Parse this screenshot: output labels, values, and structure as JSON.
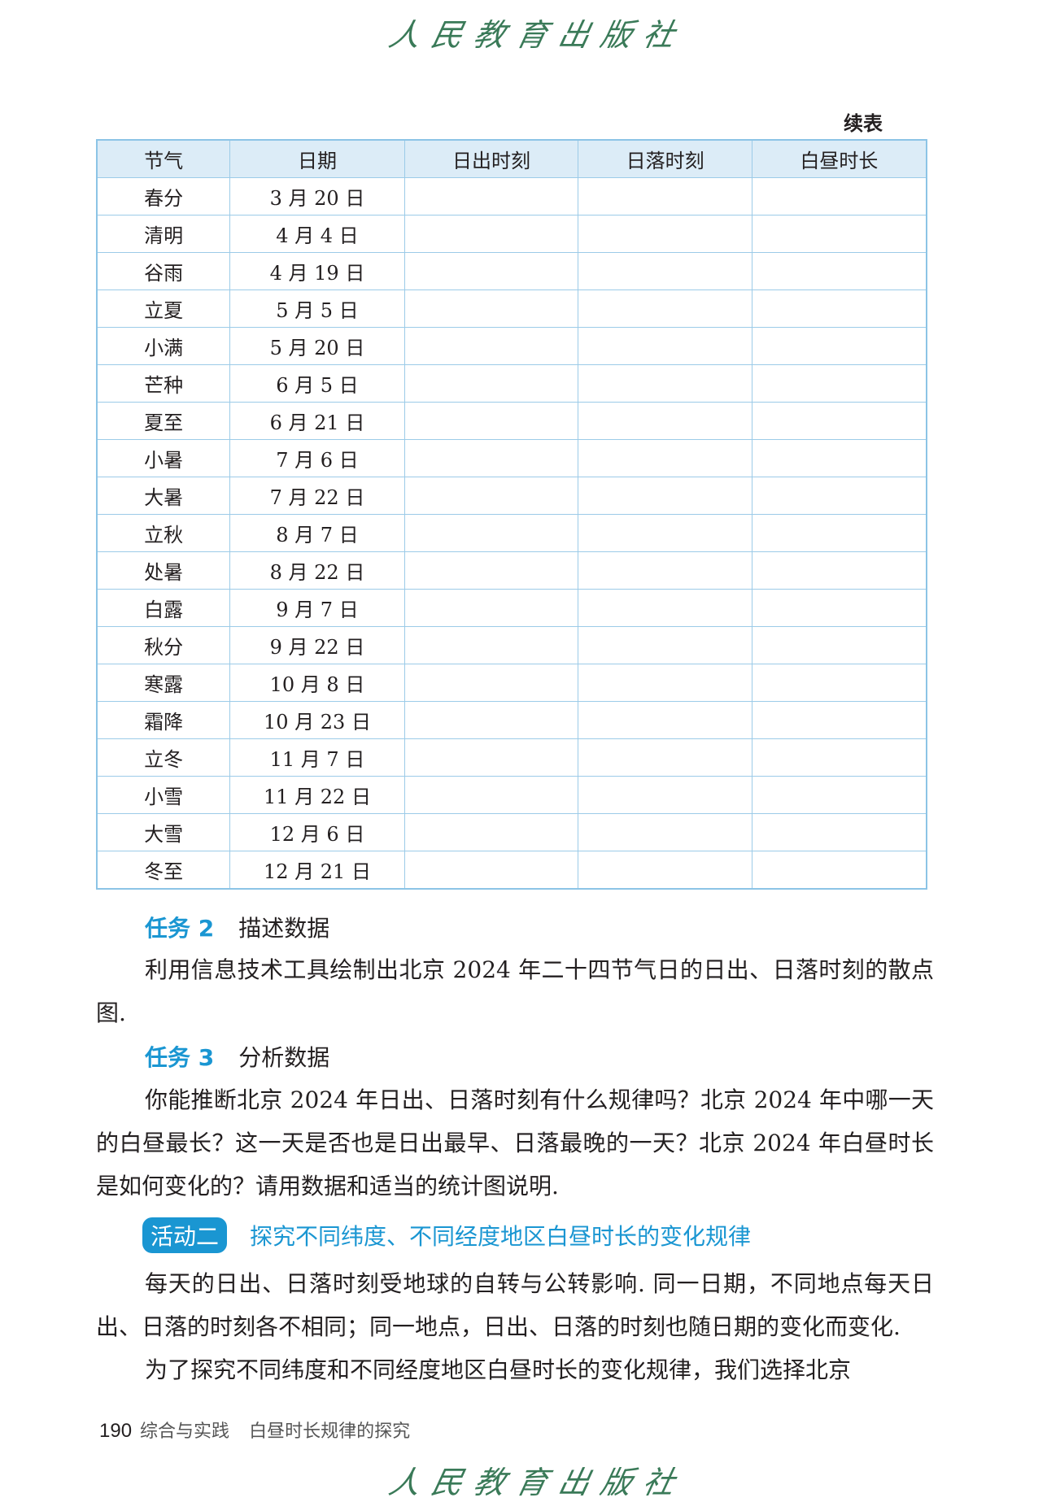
{
  "publisher_logo": "人民教育出版社",
  "table": {
    "caption": "续表",
    "headers": [
      "节气",
      "日期",
      "日出时刻",
      "日落时刻",
      "白昼时长"
    ],
    "rows": [
      [
        "春分",
        "3 月 20 日"
      ],
      [
        "清明",
        "4 月 4 日"
      ],
      [
        "谷雨",
        "4 月 19 日"
      ],
      [
        "立夏",
        "5 月 5 日"
      ],
      [
        "小满",
        "5 月 20 日"
      ],
      [
        "芒种",
        "6 月 5 日"
      ],
      [
        "夏至",
        "6 月 21 日"
      ],
      [
        "小暑",
        "7 月 6 日"
      ],
      [
        "大暑",
        "7 月 22 日"
      ],
      [
        "立秋",
        "8 月 7 日"
      ],
      [
        "处暑",
        "8 月 22 日"
      ],
      [
        "白露",
        "9 月 7 日"
      ],
      [
        "秋分",
        "9 月 22 日"
      ],
      [
        "寒露",
        "10 月 8 日"
      ],
      [
        "霜降",
        "10 月 23 日"
      ],
      [
        "立冬",
        "11 月 7 日"
      ],
      [
        "小雪",
        "11 月 22 日"
      ],
      [
        "大雪",
        "12 月 6 日"
      ],
      [
        "冬至",
        "12 月 21 日"
      ]
    ]
  },
  "task2": {
    "label": "任务 2",
    "title": "描述数据",
    "text": "利用信息技术工具绘制出北京 2024 年二十四节气日的日出、日落时刻的散点图."
  },
  "task3": {
    "label": "任务 3",
    "title": "分析数据",
    "text": "你能推断北京 2024 年日出、日落时刻有什么规律吗？北京 2024 年中哪一天的白昼最长？这一天是否也是日出最早、日落最晚的一天？北京 2024 年白昼时长是如何变化的？请用数据和适当的统计图说明."
  },
  "activity2": {
    "badge": "活动二",
    "title": "探究不同纬度、不同经度地区白昼时长的变化规律"
  },
  "paragraphs": [
    "每天的日出、日落时刻受地球的自转与公转影响. 同一日期，不同地点每天日出、日落的时刻各不相同；同一地点，日出、日落的时刻也随日期的变化而变化.",
    "为了探究不同纬度和不同经度地区白昼时长的变化规律，我们选择北京"
  ],
  "footer": {
    "page": "190",
    "section": "综合与实践",
    "title": "白昼时长规律的探究"
  },
  "colors": {
    "accent": "#1a96d2",
    "header_bg": "#dcecf7",
    "border": "#8cc4e6",
    "logo": "#3a7a58"
  }
}
